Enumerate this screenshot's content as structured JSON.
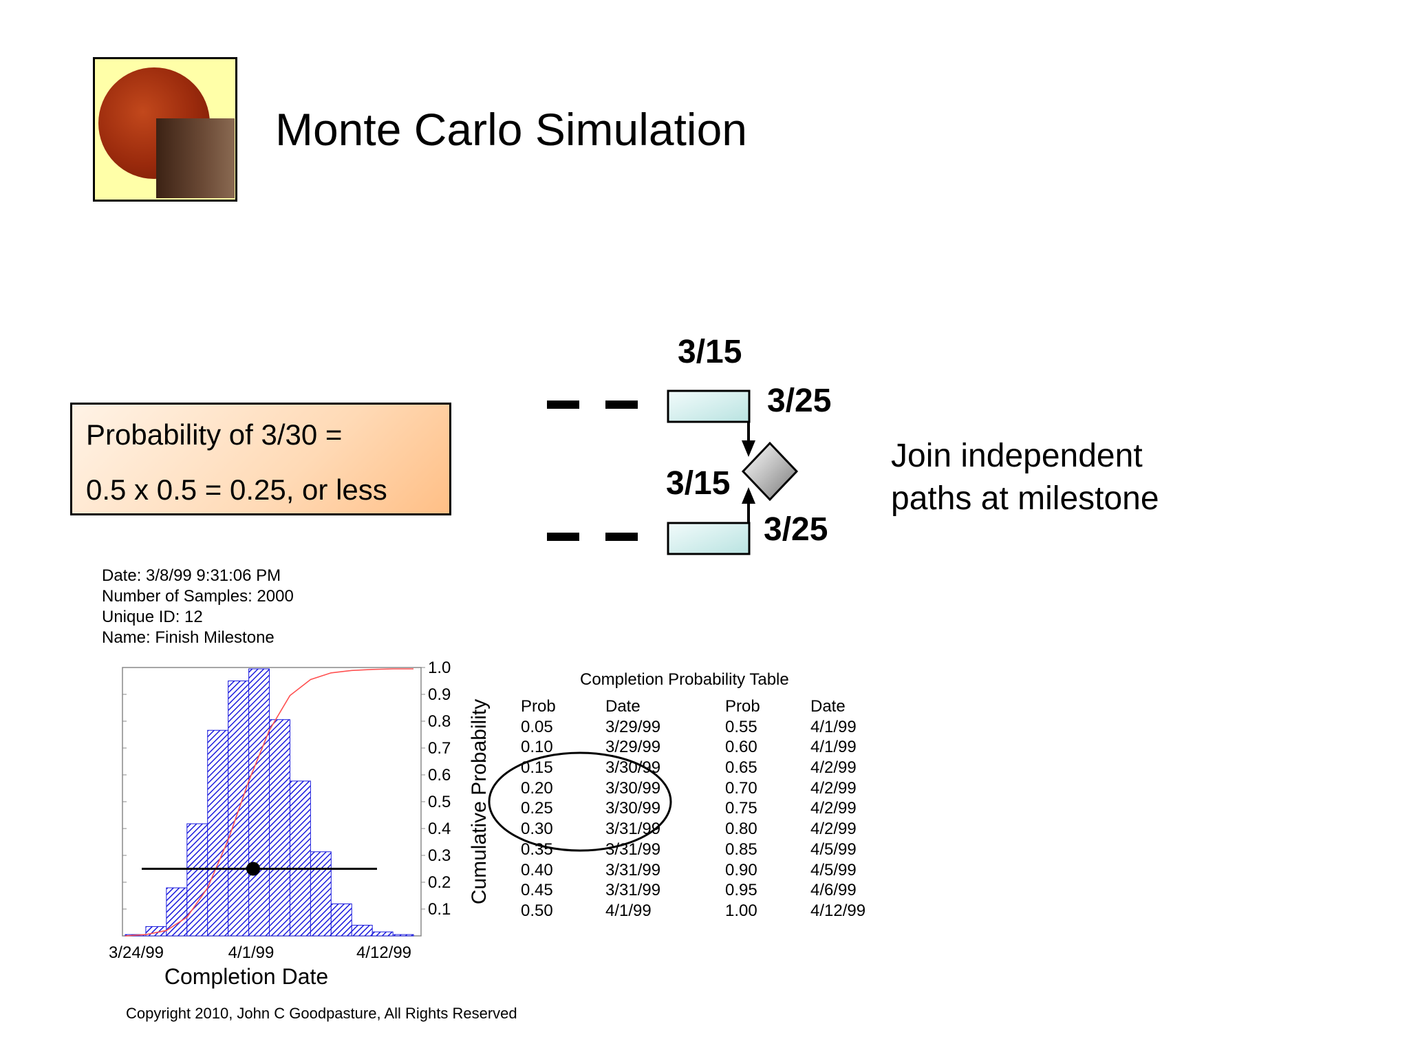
{
  "slide": {
    "title": "Monte Carlo Simulation",
    "probability_box": {
      "line1": "Probability of 3/30 =",
      "line2": "0.5 x 0.5 = 0.25, or less"
    },
    "network": {
      "top_start": "3/15",
      "top_end": "3/25",
      "bottom_start": "3/15",
      "bottom_end": "3/25"
    },
    "join_text": {
      "line1": "Join independent",
      "line2": "paths at milestone"
    },
    "info": {
      "date": "Date: 3/8/99 9:31:06 PM",
      "samples": "Number of Samples: 2000",
      "unique_id": "Unique ID: 12",
      "name": "Name: Finish Milestone"
    },
    "copyright": "Copyright 2010, John C Goodpasture, All Rights Reserved"
  },
  "chart_data": {
    "type": "bar",
    "title": "",
    "xlabel": "Completion Date",
    "ylabel": "Cumulative Probability",
    "x_ticks": [
      "3/24/99",
      "4/1/99",
      "4/12/99"
    ],
    "y_ticks": [
      "1.0",
      "0.9",
      "0.8",
      "0.7",
      "0.6",
      "0.5",
      "0.4",
      "0.3",
      "0.2",
      "0.1"
    ],
    "ylim": [
      0,
      1.0
    ],
    "histogram_relative": [
      0.005,
      0.035,
      0.18,
      0.42,
      0.77,
      0.955,
      1.0,
      0.81,
      0.58,
      0.315,
      0.12,
      0.04,
      0.015,
      0.005
    ],
    "cumulative": [
      0,
      0.005,
      0.02,
      0.07,
      0.18,
      0.36,
      0.58,
      0.77,
      0.9,
      0.96,
      0.985,
      0.994,
      0.998,
      1.0,
      1.0
    ],
    "marker_probability": 0.25,
    "colors": {
      "bars": "#1b1bdd",
      "cumulative": "#ff5050",
      "marker": "#000000"
    },
    "grid": false
  },
  "table": {
    "title": "Completion Probability Table",
    "headers": {
      "prob": "Prob",
      "date": "Date"
    },
    "left": {
      "prob": [
        "0.05",
        "0.10",
        "0.15",
        "0.20",
        "0.25",
        "0.30",
        "0.35",
        "0.40",
        "0.45",
        "0.50"
      ],
      "date": [
        "3/29/99",
        "3/29/99",
        "3/30/99",
        "3/30/99",
        "3/30/99",
        "3/31/99",
        "3/31/99",
        "3/31/99",
        "3/31/99",
        "4/1/99"
      ]
    },
    "right": {
      "prob": [
        "0.55",
        "0.60",
        "0.65",
        "0.70",
        "0.75",
        "0.80",
        "0.85",
        "0.90",
        "0.95",
        "1.00"
      ],
      "date": [
        "4/1/99",
        "4/1/99",
        "4/2/99",
        "4/2/99",
        "4/2/99",
        "4/2/99",
        "4/5/99",
        "4/5/99",
        "4/6/99",
        "4/12/99"
      ]
    }
  }
}
